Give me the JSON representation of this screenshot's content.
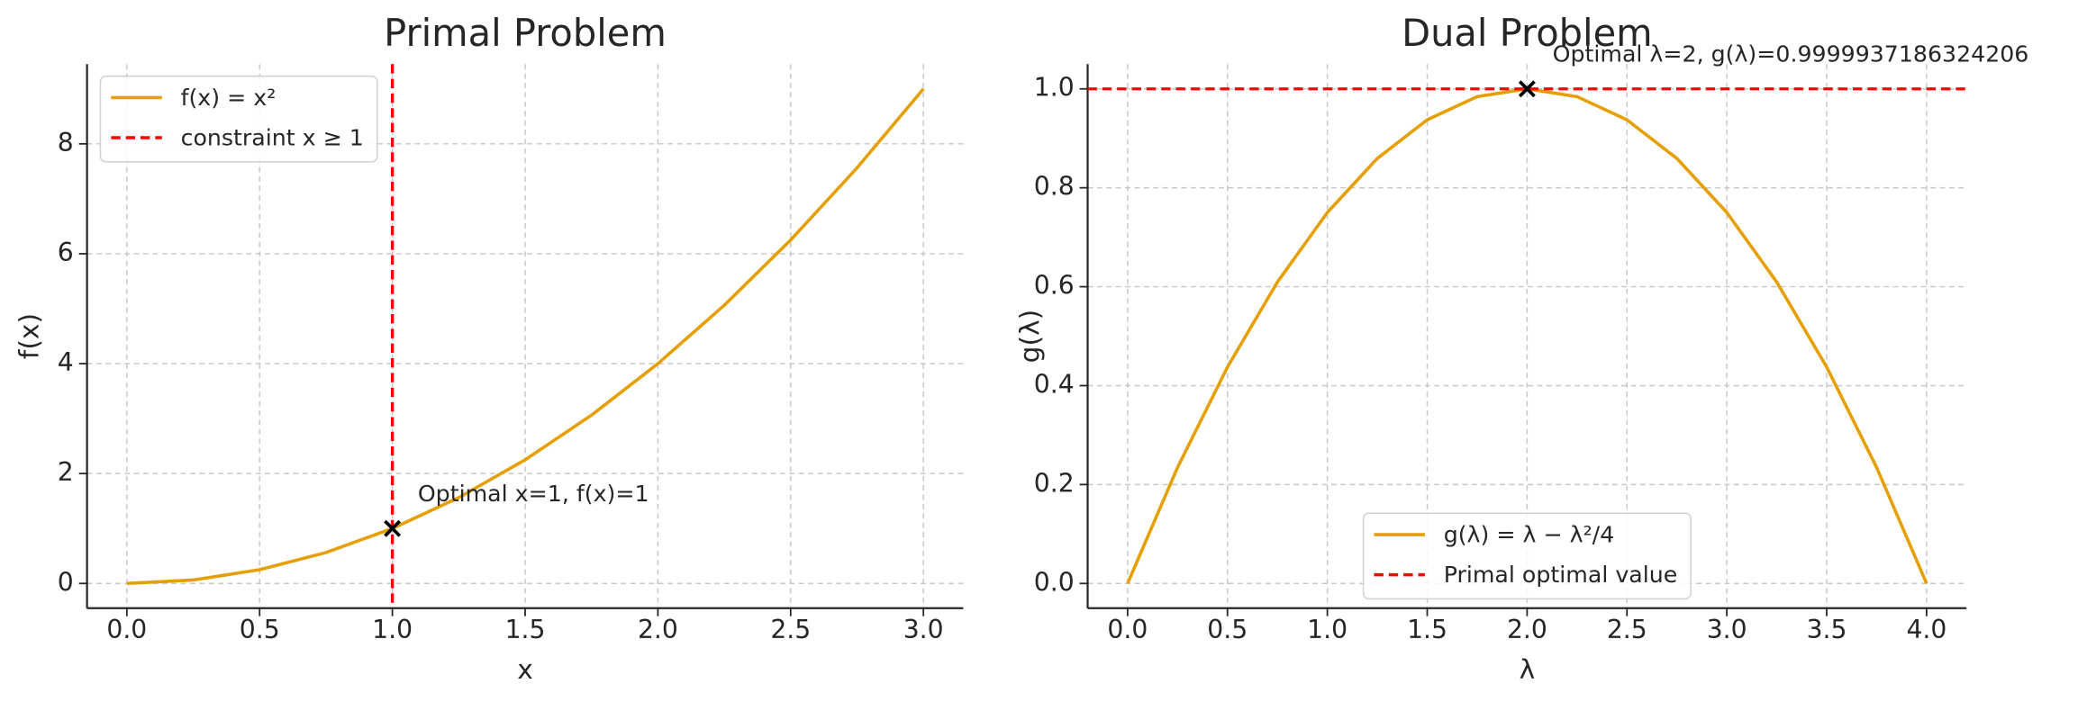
{
  "chart_data": [
    {
      "type": "line",
      "title": "Primal Problem",
      "x_label": "x",
      "y_label": "f(x)",
      "x": [
        0,
        0.25,
        0.5,
        0.75,
        1,
        1.25,
        1.5,
        1.75,
        2,
        2.25,
        2.5,
        2.75,
        3
      ],
      "series": [
        {
          "name": "f(x) = x²",
          "color": "#e69f00",
          "values": [
            0,
            0.0625,
            0.25,
            0.5625,
            1,
            1.5625,
            2.25,
            3.0625,
            4,
            5.0625,
            6.25,
            7.5625,
            9
          ]
        }
      ],
      "vline": {
        "name": "constraint x ≥ 1",
        "x": 1,
        "color": "#ff0000"
      },
      "points": [
        {
          "x": 1,
          "y": 1,
          "label": "Optimal x=1, f(x)=1"
        }
      ],
      "xlim": [
        -0.15,
        3.15
      ],
      "ylim": [
        -0.45,
        9.45
      ],
      "xticks": [
        {
          "value": 0,
          "label": "0.0"
        },
        0.5,
        {
          "value": 1,
          "label": "1.0"
        },
        1.5,
        {
          "value": 2,
          "label": "2.0"
        },
        2.5,
        {
          "value": 3,
          "label": "3.0"
        }
      ],
      "yticks": [
        0,
        2,
        4,
        6,
        8
      ],
      "grid": true,
      "legend": "upper left"
    },
    {
      "type": "line",
      "title": "Dual Problem",
      "x_label": "λ",
      "y_label": "g(λ)",
      "x": [
        0,
        0.25,
        0.5,
        0.75,
        1,
        1.25,
        1.5,
        1.75,
        2,
        2.25,
        2.5,
        2.75,
        3,
        3.25,
        3.5,
        3.75,
        4
      ],
      "series": [
        {
          "name": "g(λ) = λ − λ²/4",
          "color": "#e69f00",
          "values": [
            0,
            0.234375,
            0.4375,
            0.609375,
            0.75,
            0.859375,
            0.9375,
            0.984375,
            1,
            0.984375,
            0.9375,
            0.859375,
            0.75,
            0.609375,
            0.4375,
            0.234375,
            0
          ]
        }
      ],
      "hline": {
        "name": "Primal optimal value",
        "y": 1,
        "color": "#ff0000"
      },
      "points": [
        {
          "x": 2,
          "y": 1,
          "label": "Optimal λ=2, g(λ)=0.9999937186324206"
        }
      ],
      "xlim": [
        -0.2,
        4.2
      ],
      "ylim": [
        -0.05,
        1.05
      ],
      "xticks": [
        {
          "value": 0,
          "label": "0.0"
        },
        0.5,
        {
          "value": 1,
          "label": "1.0"
        },
        1.5,
        {
          "value": 2,
          "label": "2.0"
        },
        2.5,
        {
          "value": 3,
          "label": "3.0"
        },
        3.5,
        {
          "value": 4,
          "label": "4.0"
        }
      ],
      "yticks": [
        {
          "value": 0,
          "label": "0.0"
        },
        0.2,
        0.4,
        0.6,
        0.8,
        {
          "value": 1,
          "label": "1.0"
        }
      ],
      "grid": true,
      "legend": "lower center"
    }
  ]
}
